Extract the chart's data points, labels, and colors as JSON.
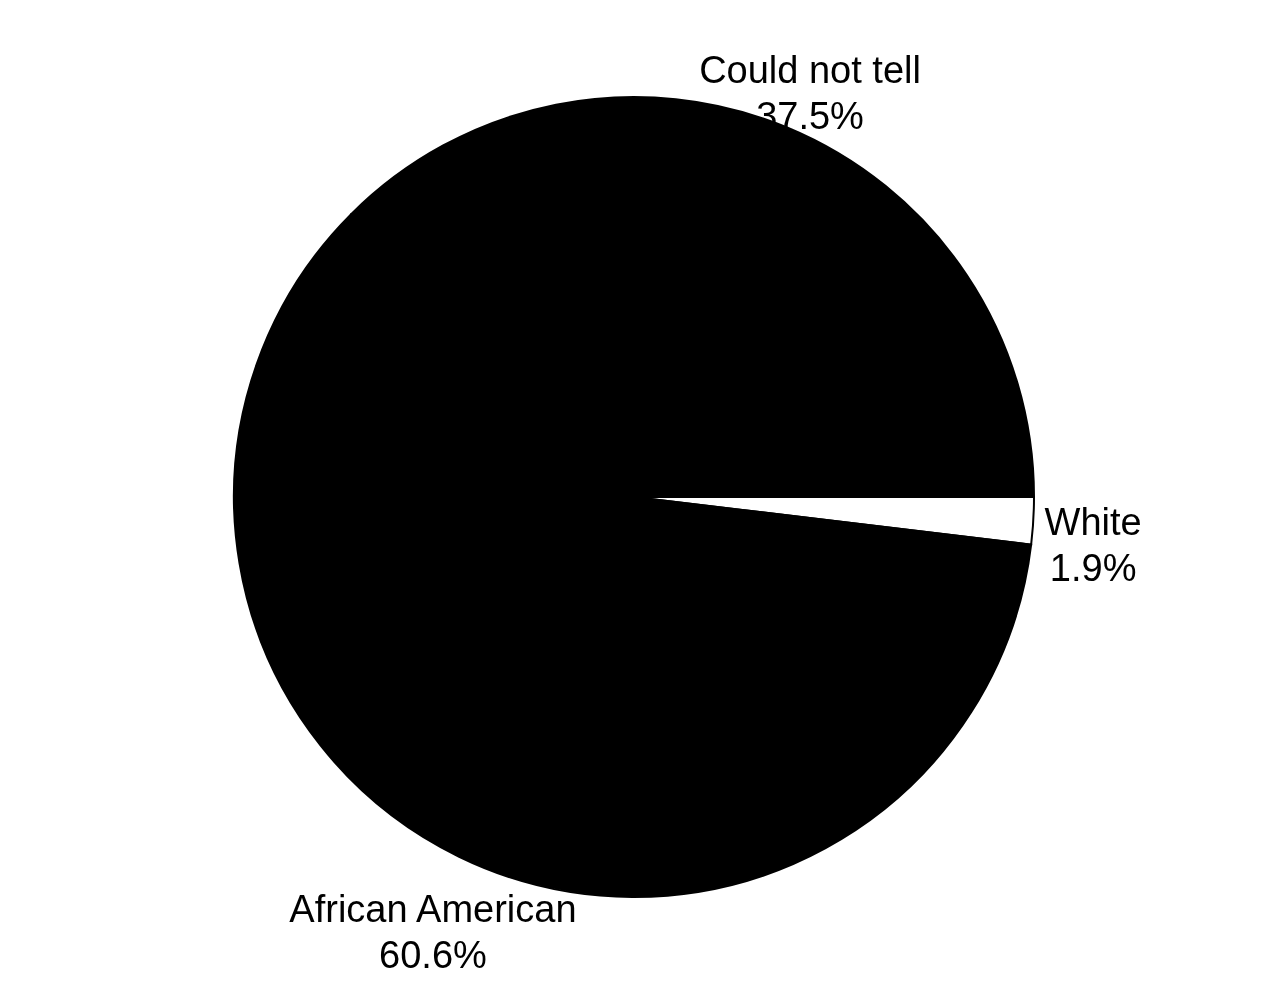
{
  "chart_data": {
    "type": "pie",
    "categories": [
      "White",
      "African American",
      "Could not tell"
    ],
    "values": [
      1.9,
      60.6,
      37.5
    ],
    "value_labels": [
      "1.9%",
      "60.6%",
      "37.5%"
    ],
    "colors": [
      "#ffffff",
      "#000000",
      "#000000"
    ]
  }
}
